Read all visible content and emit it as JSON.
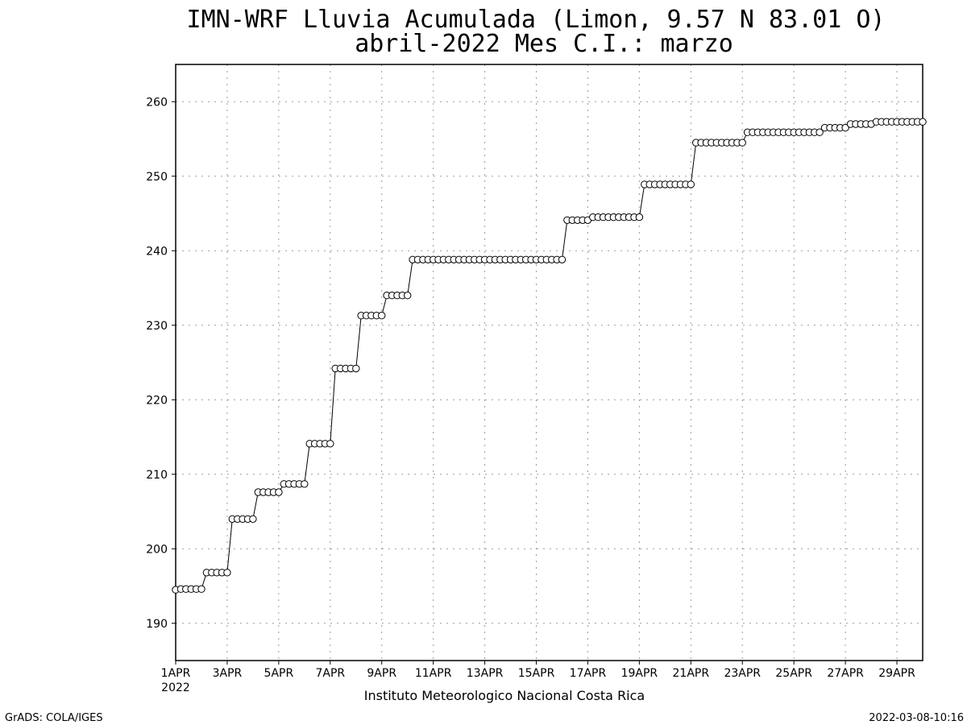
{
  "chart_data": {
    "type": "line",
    "title": "IMN-WRF  Lluvia Acumulada (Limon, 9.57  N 83.01  O)",
    "subtitle": "abril-2022 Mes C.I.: marzo",
    "xlabel": "",
    "ylabel": "",
    "ylim": [
      185,
      265
    ],
    "xlim_days": [
      1,
      30
    ],
    "y_ticks": [
      190,
      200,
      210,
      220,
      230,
      240,
      250,
      260
    ],
    "x_ticks": [
      {
        "day": 1,
        "label": "1APR"
      },
      {
        "day": 3,
        "label": "3APR"
      },
      {
        "day": 5,
        "label": "5APR"
      },
      {
        "day": 7,
        "label": "7APR"
      },
      {
        "day": 9,
        "label": "9APR"
      },
      {
        "day": 11,
        "label": "11APR"
      },
      {
        "day": 13,
        "label": "13APR"
      },
      {
        "day": 15,
        "label": "15APR"
      },
      {
        "day": 17,
        "label": "17APR"
      },
      {
        "day": 19,
        "label": "19APR"
      },
      {
        "day": 21,
        "label": "21APR"
      },
      {
        "day": 23,
        "label": "23APR"
      },
      {
        "day": 25,
        "label": "25APR"
      },
      {
        "day": 27,
        "label": "27APR"
      },
      {
        "day": 29,
        "label": "29APR"
      }
    ],
    "year_label": "2022",
    "grid": true,
    "series": [
      {
        "name": "",
        "color": "#000000",
        "x": [
          1.0,
          1.2,
          1.4,
          1.6,
          1.8,
          2.0,
          2.2,
          2.4,
          2.6,
          2.8,
          3.0,
          3.2,
          3.4,
          3.6,
          3.8,
          4.0,
          4.2,
          4.4,
          4.6,
          4.8,
          5.0,
          5.2,
          5.4,
          5.6,
          5.8,
          6.0,
          6.2,
          6.4,
          6.6,
          6.8,
          7.0,
          7.2,
          7.4,
          7.6,
          7.8,
          8.0,
          8.2,
          8.4,
          8.6,
          8.8,
          9.0,
          9.2,
          9.4,
          9.6,
          9.8,
          10.0,
          10.2,
          10.4,
          10.6,
          10.8,
          11.0,
          11.2,
          11.4,
          11.6,
          11.8,
          12.0,
          12.2,
          12.4,
          12.6,
          12.8,
          13.0,
          13.2,
          13.4,
          13.6,
          13.8,
          14.0,
          14.2,
          14.4,
          14.6,
          14.8,
          15.0,
          15.2,
          15.4,
          15.6,
          15.8,
          16.0,
          16.2,
          16.4,
          16.6,
          16.8,
          17.0,
          17.2,
          17.4,
          17.6,
          17.8,
          18.0,
          18.2,
          18.4,
          18.6,
          18.8,
          19.0,
          19.2,
          19.4,
          19.6,
          19.8,
          20.0,
          20.2,
          20.4,
          20.6,
          20.8,
          21.0,
          21.2,
          21.4,
          21.6,
          21.8,
          22.0,
          22.2,
          22.4,
          22.6,
          22.8,
          23.0,
          23.2,
          23.4,
          23.6,
          23.8,
          24.0,
          24.2,
          24.4,
          24.6,
          24.8,
          25.0,
          25.2,
          25.4,
          25.6,
          25.8,
          26.0,
          26.2,
          26.4,
          26.6,
          26.8,
          27.0,
          27.2,
          27.4,
          27.6,
          27.8,
          28.0,
          28.2,
          28.4,
          28.6,
          28.8,
          29.0,
          29.2,
          29.4,
          29.6,
          29.8,
          30.0
        ],
        "y": [
          194.5,
          194.6,
          194.6,
          194.6,
          194.6,
          194.6,
          196.8,
          196.8,
          196.8,
          196.8,
          196.8,
          204.0,
          204.0,
          204.0,
          204.0,
          204.0,
          207.6,
          207.6,
          207.6,
          207.6,
          207.6,
          208.7,
          208.7,
          208.7,
          208.7,
          208.7,
          214.1,
          214.1,
          214.1,
          214.1,
          214.1,
          224.2,
          224.2,
          224.2,
          224.2,
          224.2,
          231.3,
          231.3,
          231.3,
          231.3,
          231.3,
          234.0,
          234.0,
          234.0,
          234.0,
          234.0,
          238.8,
          238.8,
          238.8,
          238.8,
          238.8,
          238.8,
          238.8,
          238.8,
          238.8,
          238.8,
          238.8,
          238.8,
          238.8,
          238.8,
          238.8,
          238.8,
          238.8,
          238.8,
          238.8,
          238.8,
          238.8,
          238.8,
          238.8,
          238.8,
          238.8,
          238.8,
          238.8,
          238.8,
          238.8,
          238.8,
          244.1,
          244.1,
          244.1,
          244.1,
          244.1,
          244.5,
          244.5,
          244.5,
          244.5,
          244.5,
          244.5,
          244.5,
          244.5,
          244.5,
          244.5,
          248.9,
          248.9,
          248.9,
          248.9,
          248.9,
          248.9,
          248.9,
          248.9,
          248.9,
          248.9,
          254.5,
          254.5,
          254.5,
          254.5,
          254.5,
          254.5,
          254.5,
          254.5,
          254.5,
          254.5,
          255.9,
          255.9,
          255.9,
          255.9,
          255.9,
          255.9,
          255.9,
          255.9,
          255.9,
          255.9,
          255.9,
          255.9,
          255.9,
          255.9,
          255.9,
          256.5,
          256.5,
          256.5,
          256.5,
          256.5,
          257.0,
          257.0,
          257.0,
          257.0,
          257.0,
          257.3,
          257.3,
          257.3,
          257.3,
          257.3,
          257.3,
          257.3,
          257.3,
          257.3,
          257.3
        ]
      }
    ],
    "bottom_label": "Instituto Meteorologico Nacional Costa Rica"
  },
  "footer": {
    "left": "GrADS: COLA/IGES",
    "right": "2022-03-08-10:16"
  }
}
